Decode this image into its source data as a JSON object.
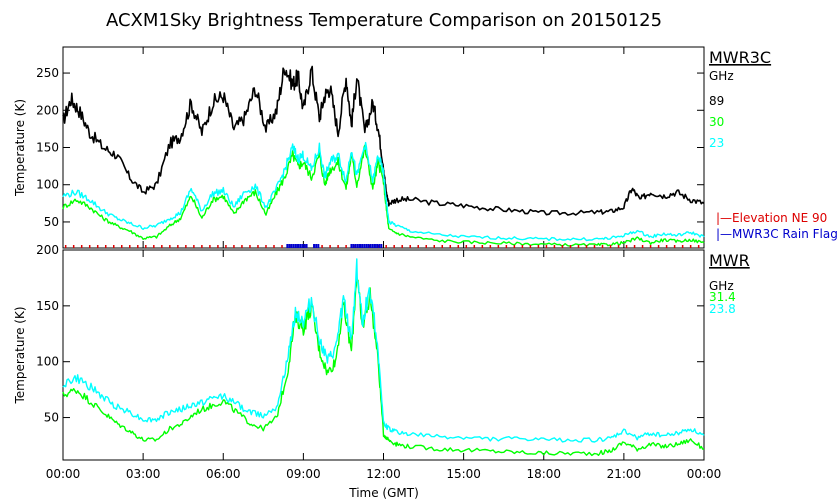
{
  "chart_data": {
    "type": "line",
    "title": "ACXM1Sky Brightness Temperature Comparison on 20150125",
    "xlabel": "Time (GMT)",
    "x_ticks": [
      "00:00",
      "03:00",
      "06:00",
      "09:00",
      "12:00",
      "15:00",
      "18:00",
      "21:00",
      "00:00"
    ],
    "xlim_hours": [
      0,
      24
    ],
    "panels": [
      {
        "ylabel": "Temperature (K)",
        "ylim": [
          15,
          285
        ],
        "yticks": [
          50,
          100,
          150,
          200,
          250
        ],
        "legend_title": "MWR3C",
        "legend_unit": "GHz",
        "series": [
          {
            "name": "89",
            "color": "#000000",
            "x": [
              0,
              0.3,
              0.6,
              1,
              1.5,
              2,
              2.5,
              3,
              3.5,
              4,
              4.4,
              4.8,
              5.2,
              5.6,
              6,
              6.4,
              6.8,
              7.2,
              7.6,
              8,
              8.3,
              8.6,
              8.8,
              9,
              9.3,
              9.6,
              9.8,
              10,
              10.3,
              10.6,
              10.8,
              11,
              11.3,
              11.6,
              11.8,
              12,
              12.1,
              12.2,
              12.5,
              13,
              14,
              15,
              16,
              17,
              18,
              19,
              20,
              20.5,
              21,
              21.3,
              21.6,
              22,
              22.5,
              23,
              23.5,
              24
            ],
            "y": [
              185,
              215,
              200,
              170,
              150,
              140,
              110,
              90,
              100,
              155,
              165,
              210,
              170,
              210,
              220,
              175,
              190,
              230,
              175,
              200,
              260,
              235,
              245,
              200,
              255,
              190,
              220,
              230,
              170,
              245,
              180,
              245,
              170,
              210,
              175,
              125,
              90,
              75,
              80,
              80,
              75,
              72,
              68,
              65,
              62,
              62,
              63,
              64,
              70,
              95,
              80,
              90,
              85,
              90,
              80,
              75
            ]
          },
          {
            "name": "30",
            "color": "#00ff00",
            "x": [
              0,
              0.5,
              1,
              1.5,
              2,
              2.5,
              3,
              3.5,
              4,
              4.4,
              4.8,
              5.2,
              5.6,
              6,
              6.4,
              6.8,
              7.2,
              7.6,
              8,
              8.3,
              8.6,
              8.8,
              9,
              9.3,
              9.6,
              9.8,
              10,
              10.3,
              10.6,
              10.8,
              11,
              11.3,
              11.6,
              11.8,
              12,
              12.1,
              12.2,
              12.5,
              13,
              14,
              15,
              16,
              17,
              18,
              19,
              20,
              20.5,
              21,
              21.5,
              22,
              22.5,
              23,
              23.5,
              24
            ],
            "y": [
              70,
              80,
              70,
              55,
              45,
              38,
              28,
              30,
              45,
              55,
              85,
              55,
              80,
              85,
              60,
              80,
              90,
              60,
              90,
              110,
              140,
              125,
              130,
              110,
              140,
              100,
              120,
              130,
              95,
              140,
              100,
              150,
              95,
              130,
              105,
              70,
              40,
              35,
              30,
              25,
              23,
              22,
              21,
              20,
              19,
              19,
              20,
              22,
              28,
              22,
              26,
              24,
              26,
              22
            ]
          },
          {
            "name": "23",
            "color": "#00ffff",
            "x": [
              0,
              0.5,
              1,
              1.5,
              2,
              2.5,
              3,
              3.5,
              4,
              4.4,
              4.8,
              5.2,
              5.6,
              6,
              6.4,
              6.8,
              7.2,
              7.6,
              8,
              8.3,
              8.6,
              8.8,
              9,
              9.3,
              9.6,
              9.8,
              10,
              10.3,
              10.6,
              10.8,
              11,
              11.3,
              11.6,
              11.8,
              12,
              12.1,
              12.2,
              12.5,
              13,
              14,
              15,
              16,
              17,
              18,
              19,
              20,
              20.5,
              21,
              21.5,
              22,
              22.5,
              23,
              23.5,
              24
            ],
            "y": [
              85,
              90,
              80,
              65,
              55,
              48,
              42,
              45,
              55,
              62,
              95,
              65,
              88,
              92,
              70,
              90,
              98,
              70,
              95,
              120,
              150,
              135,
              140,
              120,
              150,
              110,
              130,
              140,
              105,
              150,
              110,
              155,
              105,
              140,
              115,
              80,
              50,
              45,
              38,
              33,
              30,
              29,
              28,
              27,
              27,
              27,
              28,
              32,
              38,
              30,
              34,
              32,
              36,
              30
            ]
          }
        ],
        "flag_labels": [
          {
            "text": "|—Elevation NE 90",
            "color": "#dd0000"
          },
          {
            "text": "|—MWR3C Rain Flag",
            "color": "#0000cc"
          }
        ],
        "flag_colors": {
          "elevation": "#dd0000",
          "rain": "#0000cc"
        }
      },
      {
        "ylabel": "Temperature (K)",
        "ylim": [
          12,
          200
        ],
        "yticks": [
          50,
          100,
          150,
          200
        ],
        "legend_title": "MWR",
        "legend_unit": "GHz",
        "series": [
          {
            "name": "31.4",
            "color": "#00ff00",
            "x": [
              0,
              0.5,
              1,
              1.5,
              2,
              2.5,
              3,
              3.5,
              4,
              4.5,
              5,
              5.5,
              6,
              6.5,
              7,
              7.5,
              8,
              8.4,
              8.7,
              9,
              9.3,
              9.6,
              9.9,
              10.2,
              10.5,
              10.8,
              11,
              11.2,
              11.5,
              11.8,
              12,
              12.2,
              12.5,
              13,
              14,
              15,
              16,
              17,
              18,
              19,
              20,
              20.5,
              21,
              21.5,
              22,
              22.5,
              23,
              23.5,
              24
            ],
            "y": [
              70,
              75,
              65,
              55,
              45,
              38,
              30,
              30,
              40,
              45,
              55,
              60,
              65,
              55,
              45,
              40,
              50,
              90,
              140,
              130,
              150,
              110,
              90,
              100,
              150,
              110,
              180,
              130,
              160,
              100,
              35,
              30,
              26,
              24,
              22,
              21,
              20,
              19,
              18,
              18,
              18,
              20,
              28,
              22,
              26,
              24,
              26,
              30,
              22
            ]
          },
          {
            "name": "23.8",
            "color": "#00ffff",
            "x": [
              0,
              0.5,
              1,
              1.5,
              2,
              2.5,
              3,
              3.5,
              4,
              4.5,
              5,
              5.5,
              6,
              6.5,
              7,
              7.5,
              8,
              8.4,
              8.7,
              9,
              9.3,
              9.6,
              9.9,
              10.2,
              10.5,
              10.8,
              11,
              11.2,
              11.5,
              11.8,
              12,
              12.2,
              12.5,
              13,
              14,
              15,
              16,
              17,
              18,
              19,
              20,
              20.5,
              21,
              21.5,
              22,
              22.5,
              23,
              23.5,
              24
            ],
            "y": [
              80,
              85,
              78,
              68,
              60,
              55,
              48,
              48,
              55,
              58,
              62,
              66,
              70,
              62,
              55,
              52,
              60,
              100,
              145,
              135,
              155,
              120,
              100,
              110,
              155,
              120,
              185,
              135,
              165,
              110,
              45,
              40,
              37,
              35,
              33,
              32,
              31,
              31,
              30,
              30,
              30,
              31,
              38,
              32,
              36,
              34,
              36,
              40,
              34
            ]
          }
        ]
      }
    ]
  }
}
